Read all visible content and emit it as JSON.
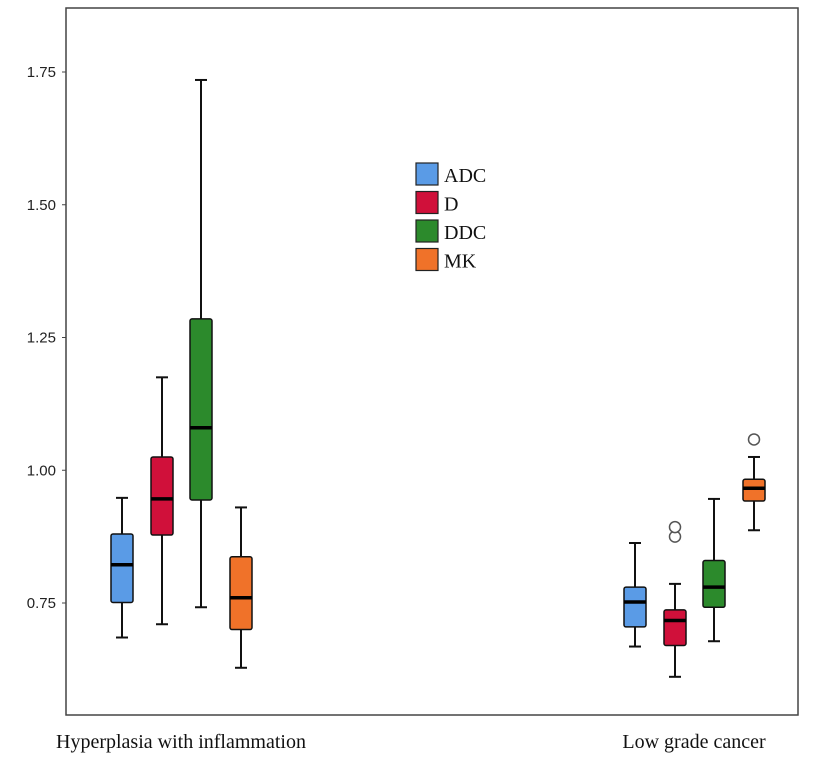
{
  "chart_data": {
    "type": "box",
    "title": "",
    "xlabel": "",
    "ylabel": "",
    "ylim": [
      0.57,
      1.87
    ],
    "yticks": [
      0.75,
      1.0,
      1.25,
      1.5,
      1.75
    ],
    "ytick_labels": [
      "0.75",
      "1.00",
      "1.25",
      "1.50",
      "1.75"
    ],
    "grid": false,
    "legend_position": "top-center",
    "categories": [
      "Hyperplasia with inflammation",
      "Low grade cancer"
    ],
    "series": [
      {
        "name": "ADC",
        "color": "#5a9be6",
        "boxes": [
          {
            "min": 0.685,
            "q1": 0.751,
            "median": 0.822,
            "q3": 0.88,
            "max": 0.948,
            "outliers": []
          },
          {
            "min": 0.668,
            "q1": 0.705,
            "median": 0.752,
            "q3": 0.78,
            "max": 0.863,
            "outliers": []
          }
        ]
      },
      {
        "name": "D",
        "color": "#d0103a",
        "boxes": [
          {
            "min": 0.71,
            "q1": 0.878,
            "median": 0.946,
            "q3": 1.025,
            "max": 1.175,
            "outliers": []
          },
          {
            "min": 0.611,
            "q1": 0.67,
            "median": 0.717,
            "q3": 0.737,
            "max": 0.786,
            "outliers": [
              0.875,
              0.893
            ]
          }
        ]
      },
      {
        "name": "DDC",
        "color": "#2c8a2c",
        "boxes": [
          {
            "min": 0.742,
            "q1": 0.944,
            "median": 1.08,
            "q3": 1.285,
            "max": 1.735,
            "outliers": []
          },
          {
            "min": 0.678,
            "q1": 0.742,
            "median": 0.78,
            "q3": 0.83,
            "max": 0.946,
            "outliers": []
          }
        ]
      },
      {
        "name": "MK",
        "color": "#f07229",
        "boxes": [
          {
            "min": 0.628,
            "q1": 0.7,
            "median": 0.76,
            "q3": 0.837,
            "max": 0.93,
            "outliers": []
          },
          {
            "min": 0.887,
            "q1": 0.942,
            "median": 0.966,
            "q3": 0.983,
            "max": 1.025,
            "outliers": [
              1.058
            ]
          }
        ]
      }
    ]
  }
}
